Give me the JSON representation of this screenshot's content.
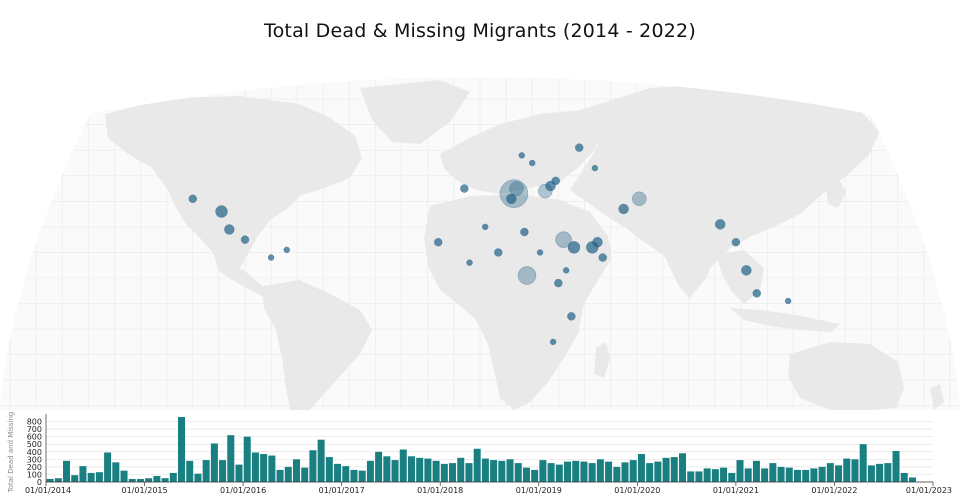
{
  "title": "Total Dead & Missing Migrants (2014 - 2022)",
  "colors": {
    "background": "#ffffff",
    "ocean": "#fafafa",
    "graticule": "#e8e8e8",
    "land": "#e9e9e9",
    "incident": "#1f5f84",
    "bar": "#1a7f80",
    "axis": "#333333"
  },
  "chart_data": [
    {
      "type": "scatter",
      "map_projection": "robinson-like world map",
      "description_series": "incidents of dead and missing migrants, circles sized by count",
      "points": [
        {
          "lon": 13,
          "lat": 33,
          "size": 14
        },
        {
          "lon": 14,
          "lat": 35,
          "size": 7
        },
        {
          "lon": 12,
          "lat": 31,
          "size": 5
        },
        {
          "lon": 25,
          "lat": 34,
          "size": 7
        },
        {
          "lon": 27,
          "lat": 36,
          "size": 5
        },
        {
          "lon": 29,
          "lat": 38,
          "size": 4
        },
        {
          "lon": 32,
          "lat": 15,
          "size": 8
        },
        {
          "lon": 36,
          "lat": 12,
          "size": 6
        },
        {
          "lon": 43,
          "lat": 12,
          "size": 6
        },
        {
          "lon": 45,
          "lat": 14,
          "size": 5
        },
        {
          "lon": 18,
          "lat": 1,
          "size": 9
        },
        {
          "lon": 17,
          "lat": 18,
          "size": 4
        },
        {
          "lon": 61,
          "lat": 31,
          "size": 7
        },
        {
          "lon": 55,
          "lat": 27,
          "size": 5
        },
        {
          "lon": 38,
          "lat": 51,
          "size": 4
        },
        {
          "lon": 44,
          "lat": 43,
          "size": 3
        },
        {
          "lon": -110,
          "lat": 31,
          "size": 4
        },
        {
          "lon": -99,
          "lat": 26,
          "size": 6
        },
        {
          "lon": -96,
          "lat": 19,
          "size": 5
        },
        {
          "lon": -90,
          "lat": 15,
          "size": 4
        },
        {
          "lon": -80,
          "lat": 8,
          "size": 3
        },
        {
          "lon": -74,
          "lat": 11,
          "size": 3
        },
        {
          "lon": 92,
          "lat": 21,
          "size": 5
        },
        {
          "lon": 98,
          "lat": 14,
          "size": 4
        },
        {
          "lon": 102,
          "lat": 3,
          "size": 5
        },
        {
          "lon": 106,
          "lat": -6,
          "size": 4
        },
        {
          "lon": 118,
          "lat": -9,
          "size": 3
        },
        {
          "lon": 30,
          "lat": -2,
          "size": 4
        },
        {
          "lon": 35,
          "lat": -15,
          "size": 4
        },
        {
          "lon": 28,
          "lat": -25,
          "size": 3
        },
        {
          "lon": -6,
          "lat": 35,
          "size": 4
        },
        {
          "lon": -16,
          "lat": 14,
          "size": 4
        },
        {
          "lon": -4,
          "lat": 6,
          "size": 3
        },
        {
          "lon": 7,
          "lat": 10,
          "size": 4
        },
        {
          "lon": 2,
          "lat": 20,
          "size": 3
        },
        {
          "lon": 47,
          "lat": 8,
          "size": 4
        },
        {
          "lon": 23,
          "lat": 10,
          "size": 3
        },
        {
          "lon": 33,
          "lat": 3,
          "size": 3
        },
        {
          "lon": 20,
          "lat": 45,
          "size": 3
        },
        {
          "lon": 16,
          "lat": 48,
          "size": 3
        }
      ]
    },
    {
      "type": "bar",
      "ylabel": "Total Dead and Missing",
      "ylim": [
        0,
        900
      ],
      "yticks": [
        0,
        100,
        200,
        300,
        400,
        500,
        600,
        700,
        800
      ],
      "xticks": [
        "01/01/2014",
        "01/01/2015",
        "01/01/2016",
        "01/01/2017",
        "01/01/2018",
        "01/01/2019",
        "01/01/2020",
        "01/01/2021",
        "01/01/2022",
        "01/01/2023"
      ],
      "bars_start_month": "01/01/2014",
      "values": [
        40,
        50,
        280,
        90,
        210,
        120,
        130,
        390,
        260,
        150,
        40,
        40,
        50,
        80,
        50,
        120,
        860,
        280,
        110,
        290,
        510,
        290,
        620,
        230,
        600,
        390,
        370,
        350,
        160,
        200,
        300,
        190,
        420,
        560,
        330,
        240,
        210,
        160,
        150,
        280,
        400,
        340,
        290,
        430,
        340,
        320,
        310,
        280,
        240,
        250,
        320,
        250,
        440,
        310,
        290,
        280,
        300,
        250,
        190,
        160,
        290,
        250,
        230,
        270,
        280,
        270,
        250,
        300,
        270,
        200,
        260,
        290,
        370,
        250,
        270,
        320,
        330,
        380,
        140,
        140,
        180,
        170,
        190,
        120,
        290,
        180,
        280,
        180,
        250,
        200,
        190,
        160,
        160,
        180,
        200,
        250,
        220,
        310,
        300,
        500,
        220,
        240,
        250,
        410,
        120,
        60
      ]
    }
  ]
}
